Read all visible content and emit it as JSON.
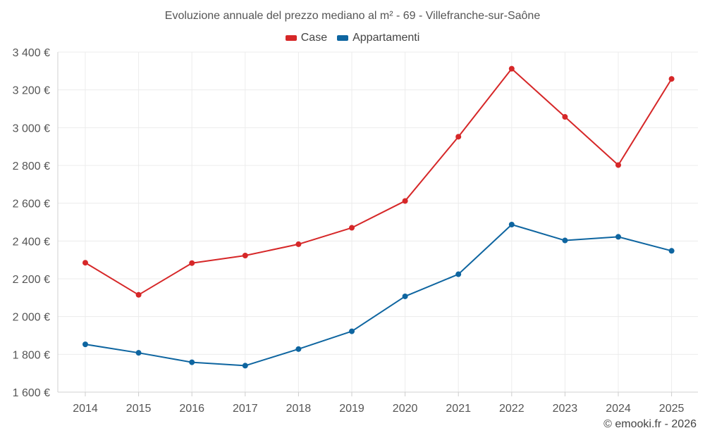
{
  "chart_data": {
    "type": "line",
    "title": "Evoluzione annuale del prezzo mediano al m² - 69 - Villefranche-sur-Saône",
    "categories": [
      "2014",
      "2015",
      "2016",
      "2017",
      "2018",
      "2019",
      "2020",
      "2021",
      "2022",
      "2023",
      "2024",
      "2025"
    ],
    "series": [
      {
        "name": "Case",
        "color": "#d62728",
        "values": [
          2285,
          2115,
          2283,
          2323,
          2383,
          2470,
          2612,
          2952,
          3312,
          3057,
          2802,
          3258
        ]
      },
      {
        "name": "Appartamenti",
        "color": "#0e65a0",
        "values": [
          1853,
          1808,
          1758,
          1740,
          1828,
          1922,
          2107,
          2224,
          2487,
          2403,
          2422,
          2348
        ]
      }
    ],
    "y_ticks": [
      1600,
      1800,
      2000,
      2200,
      2400,
      2600,
      2800,
      3000,
      3200,
      3400
    ],
    "y_tick_labels": [
      "1 600 €",
      "1 800 €",
      "2 000 €",
      "2 200 €",
      "2 400 €",
      "2 600 €",
      "2 800 €",
      "3 000 €",
      "3 200 €",
      "3 400 €"
    ],
    "ylim": [
      1600,
      3400
    ],
    "xlabel": "",
    "ylabel": "",
    "grid": true,
    "legend_position": "top-center"
  },
  "credit": "© emooki.fr - 2026"
}
